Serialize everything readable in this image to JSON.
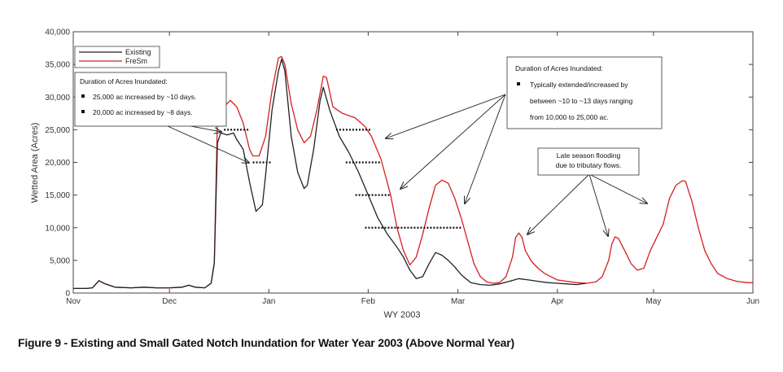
{
  "caption": "Figure 9 - Existing and Small Gated Notch Inundation for Water Year 2003 (Above Normal Year)",
  "chart_data": {
    "type": "line",
    "xlabel": "WY 2003",
    "ylabel": "Wetted Area (Acres)",
    "ylim": [
      0,
      40000
    ],
    "xlim": [
      0,
      212
    ],
    "grid": false,
    "legend_position": "top-left",
    "x_ticks": [
      {
        "label": "Nov",
        "day": 0
      },
      {
        "label": "Dec",
        "day": 30
      },
      {
        "label": "Jan",
        "day": 61
      },
      {
        "label": "Feb",
        "day": 92
      },
      {
        "label": "Mar",
        "day": 120
      },
      {
        "label": "Apr",
        "day": 151
      },
      {
        "label": "May",
        "day": 181
      },
      {
        "label": "Jun",
        "day": 212
      }
    ],
    "y_ticks": [
      {
        "label": "0",
        "value": 0
      },
      {
        "label": "5,000",
        "value": 5000
      },
      {
        "label": "10,000",
        "value": 10000
      },
      {
        "label": "15,000",
        "value": 15000
      },
      {
        "label": "20,000",
        "value": 20000
      },
      {
        "label": "25,000",
        "value": 25000
      },
      {
        "label": "30,000",
        "value": 30000
      },
      {
        "label": "35,000",
        "value": 35000
      },
      {
        "label": "40,000",
        "value": 40000
      }
    ],
    "series": [
      {
        "name": "Existing",
        "color": "#222222",
        "points": [
          [
            0,
            700
          ],
          [
            4,
            700
          ],
          [
            6,
            800
          ],
          [
            8,
            1900
          ],
          [
            10,
            1400
          ],
          [
            13,
            900
          ],
          [
            18,
            800
          ],
          [
            22,
            900
          ],
          [
            26,
            800
          ],
          [
            30,
            800
          ],
          [
            34,
            900
          ],
          [
            36,
            1200
          ],
          [
            38,
            900
          ],
          [
            41,
            800
          ],
          [
            43,
            1500
          ],
          [
            44,
            4600
          ],
          [
            45,
            23000
          ],
          [
            46,
            24500
          ],
          [
            48,
            24200
          ],
          [
            50,
            24500
          ],
          [
            51,
            23500
          ],
          [
            53,
            22000
          ],
          [
            55,
            17000
          ],
          [
            57,
            12500
          ],
          [
            59,
            13500
          ],
          [
            60,
            18000
          ],
          [
            62,
            28000
          ],
          [
            64,
            34000
          ],
          [
            65,
            35800
          ],
          [
            66,
            34000
          ],
          [
            68,
            24000
          ],
          [
            70,
            18500
          ],
          [
            72,
            16000
          ],
          [
            73,
            16500
          ],
          [
            75,
            22000
          ],
          [
            77,
            29500
          ],
          [
            78,
            31500
          ],
          [
            80,
            28000
          ],
          [
            83,
            24000
          ],
          [
            86,
            21500
          ],
          [
            89,
            18500
          ],
          [
            92,
            15000
          ],
          [
            95,
            11500
          ],
          [
            98,
            9000
          ],
          [
            101,
            7000
          ],
          [
            103,
            5500
          ],
          [
            105,
            3500
          ],
          [
            107,
            2200
          ],
          [
            109,
            2500
          ],
          [
            111,
            4500
          ],
          [
            113,
            6200
          ],
          [
            115,
            5800
          ],
          [
            117,
            5000
          ],
          [
            119,
            4000
          ],
          [
            121,
            2800
          ],
          [
            124,
            1600
          ],
          [
            127,
            1300
          ],
          [
            130,
            1200
          ],
          [
            133,
            1400
          ],
          [
            136,
            1800
          ],
          [
            139,
            2200
          ],
          [
            142,
            2000
          ],
          [
            145,
            1800
          ],
          [
            148,
            1600
          ],
          [
            151,
            1500
          ],
          [
            154,
            1400
          ],
          [
            157,
            1300
          ],
          [
            160,
            1500
          ]
        ]
      },
      {
        "name": "FreSm",
        "color": "#d42020",
        "points": [
          [
            0,
            700
          ],
          [
            4,
            700
          ],
          [
            6,
            800
          ],
          [
            8,
            1900
          ],
          [
            10,
            1400
          ],
          [
            13,
            900
          ],
          [
            18,
            800
          ],
          [
            22,
            900
          ],
          [
            26,
            800
          ],
          [
            30,
            800
          ],
          [
            34,
            900
          ],
          [
            36,
            1200
          ],
          [
            38,
            900
          ],
          [
            41,
            800
          ],
          [
            43,
            1500
          ],
          [
            44,
            4600
          ],
          [
            45,
            27000
          ],
          [
            47,
            28500
          ],
          [
            49,
            29500
          ],
          [
            51,
            28500
          ],
          [
            53,
            26000
          ],
          [
            55,
            22000
          ],
          [
            56,
            21000
          ],
          [
            58,
            21000
          ],
          [
            60,
            24000
          ],
          [
            62,
            31000
          ],
          [
            64,
            36000
          ],
          [
            65,
            36200
          ],
          [
            66,
            35000
          ],
          [
            68,
            29000
          ],
          [
            70,
            25000
          ],
          [
            72,
            23000
          ],
          [
            74,
            24000
          ],
          [
            76,
            28000
          ],
          [
            78,
            33200
          ],
          [
            79,
            33000
          ],
          [
            81,
            28500
          ],
          [
            84,
            27500
          ],
          [
            88,
            26800
          ],
          [
            91,
            25500
          ],
          [
            93,
            24000
          ],
          [
            96,
            20500
          ],
          [
            99,
            15000
          ],
          [
            101,
            10000
          ],
          [
            103,
            6500
          ],
          [
            105,
            4300
          ],
          [
            107,
            5500
          ],
          [
            109,
            9000
          ],
          [
            111,
            13000
          ],
          [
            113,
            16500
          ],
          [
            115,
            17300
          ],
          [
            117,
            16800
          ],
          [
            119,
            14500
          ],
          [
            121,
            11500
          ],
          [
            123,
            8000
          ],
          [
            125,
            4500
          ],
          [
            127,
            2500
          ],
          [
            129,
            1700
          ],
          [
            131,
            1500
          ],
          [
            133,
            1600
          ],
          [
            135,
            2500
          ],
          [
            137,
            5500
          ],
          [
            138,
            8500
          ],
          [
            139,
            9200
          ],
          [
            140,
            8500
          ],
          [
            141,
            6500
          ],
          [
            143,
            4800
          ],
          [
            145,
            3800
          ],
          [
            147,
            3000
          ],
          [
            149,
            2500
          ],
          [
            151,
            2000
          ],
          [
            154,
            1800
          ],
          [
            157,
            1600
          ],
          [
            160,
            1500
          ],
          [
            163,
            1700
          ],
          [
            165,
            2500
          ],
          [
            167,
            5000
          ],
          [
            168,
            7500
          ],
          [
            169,
            8600
          ],
          [
            170,
            8400
          ],
          [
            172,
            6500
          ],
          [
            174,
            4500
          ],
          [
            176,
            3500
          ],
          [
            178,
            3800
          ],
          [
            180,
            6500
          ],
          [
            182,
            8500
          ],
          [
            184,
            10500
          ],
          [
            186,
            14500
          ],
          [
            188,
            16500
          ],
          [
            190,
            17200
          ],
          [
            191,
            17100
          ],
          [
            193,
            14000
          ],
          [
            195,
            10000
          ],
          [
            197,
            6500
          ],
          [
            199,
            4500
          ],
          [
            201,
            3000
          ],
          [
            204,
            2200
          ],
          [
            207,
            1800
          ],
          [
            210,
            1600
          ],
          [
            212,
            1600
          ]
        ]
      }
    ],
    "threshold_markers": [
      {
        "value": 25000,
        "x_start": 47,
        "x_end": 55
      },
      {
        "value": 20000,
        "x_start": 56,
        "x_end": 62
      },
      {
        "value": 25000,
        "x_start": 82,
        "x_end": 93
      },
      {
        "value": 20000,
        "x_start": 85,
        "x_end": 96
      },
      {
        "value": 15000,
        "x_start": 88,
        "x_end": 99
      },
      {
        "value": 10000,
        "x_start": 91,
        "x_end": 121
      }
    ],
    "annotations": [
      {
        "id": "left-box",
        "lines": [
          {
            "text": "Duration of Acres Inundated:",
            "bullet": false
          },
          {
            "text": "25,000 ac increased by ~10 days.",
            "bullet": true
          },
          {
            "text": "20,000 ac increased by ~8 days.",
            "bullet": true
          }
        ]
      },
      {
        "id": "right-box",
        "lines": [
          {
            "text": "Duration of Acres Inundated:",
            "bullet": false
          },
          {
            "text": "Typically extended/increased  by",
            "bullet": true
          },
          {
            "text": "between ~10 to ~13 days ranging",
            "bullet": false
          },
          {
            "text": "from 10,000 to 25,000 ac.",
            "bullet": false
          }
        ]
      },
      {
        "id": "late-box",
        "lines": [
          {
            "text": "Late season flooding",
            "bullet": false
          },
          {
            "text": "due to tributary flows.",
            "bullet": false
          }
        ]
      }
    ]
  }
}
